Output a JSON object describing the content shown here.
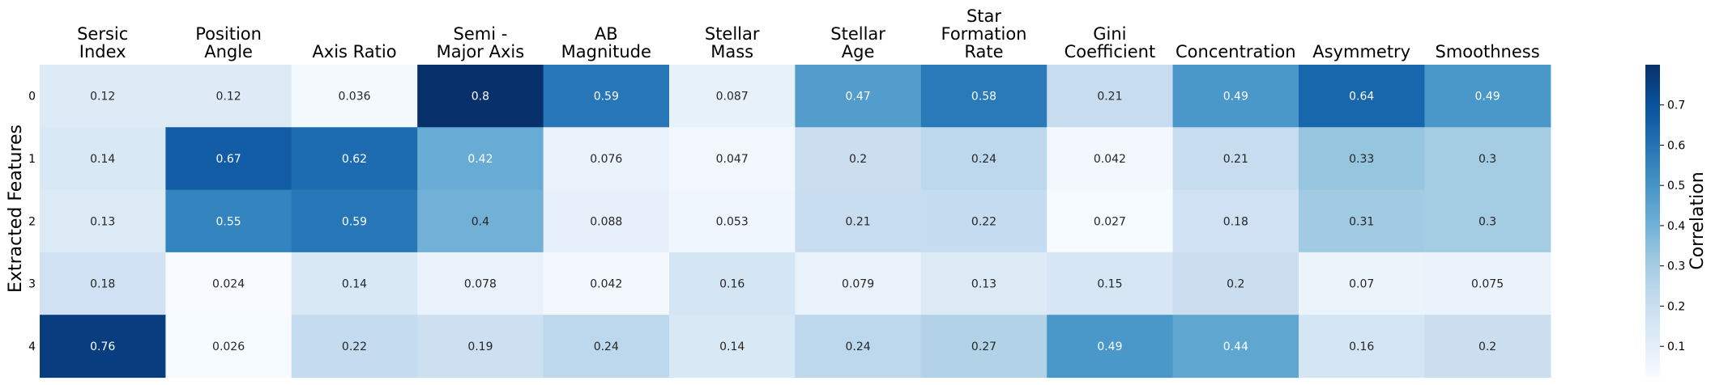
{
  "chart_data": {
    "type": "heatmap",
    "columns": [
      [
        "Sersic",
        "Index"
      ],
      [
        "Position",
        "Angle"
      ],
      [
        "Axis Ratio"
      ],
      [
        "Semi -",
        "Major Axis"
      ],
      [
        "AB",
        "Magnitude"
      ],
      [
        "Stellar",
        "Mass"
      ],
      [
        "Stellar",
        "Age"
      ],
      [
        "Star",
        "Formation",
        "Rate"
      ],
      [
        "Gini",
        "Coefficient"
      ],
      [
        "Concentration"
      ],
      [
        "Asymmetry"
      ],
      [
        "Smoothness"
      ]
    ],
    "rows": [
      "0",
      "1",
      "2",
      "3",
      "4"
    ],
    "values": [
      [
        0.12,
        0.12,
        0.036,
        0.8,
        0.59,
        0.087,
        0.47,
        0.58,
        0.21,
        0.49,
        0.64,
        0.49
      ],
      [
        0.14,
        0.67,
        0.62,
        0.42,
        0.076,
        0.047,
        0.2,
        0.24,
        0.042,
        0.21,
        0.33,
        0.3
      ],
      [
        0.13,
        0.55,
        0.59,
        0.4,
        0.088,
        0.053,
        0.21,
        0.22,
        0.027,
        0.18,
        0.31,
        0.3
      ],
      [
        0.18,
        0.024,
        0.14,
        0.078,
        0.042,
        0.16,
        0.079,
        0.13,
        0.15,
        0.2,
        0.07,
        0.075
      ],
      [
        0.76,
        0.026,
        0.22,
        0.19,
        0.24,
        0.14,
        0.24,
        0.27,
        0.49,
        0.44,
        0.16,
        0.2
      ]
    ],
    "ylabel": "Extracted Features",
    "colorbar": {
      "label": "Correlation",
      "range": [
        0.024,
        0.8
      ],
      "ticks": [
        0.1,
        0.2,
        0.3,
        0.4,
        0.5,
        0.6,
        0.7
      ],
      "colormap": "Blues"
    }
  }
}
